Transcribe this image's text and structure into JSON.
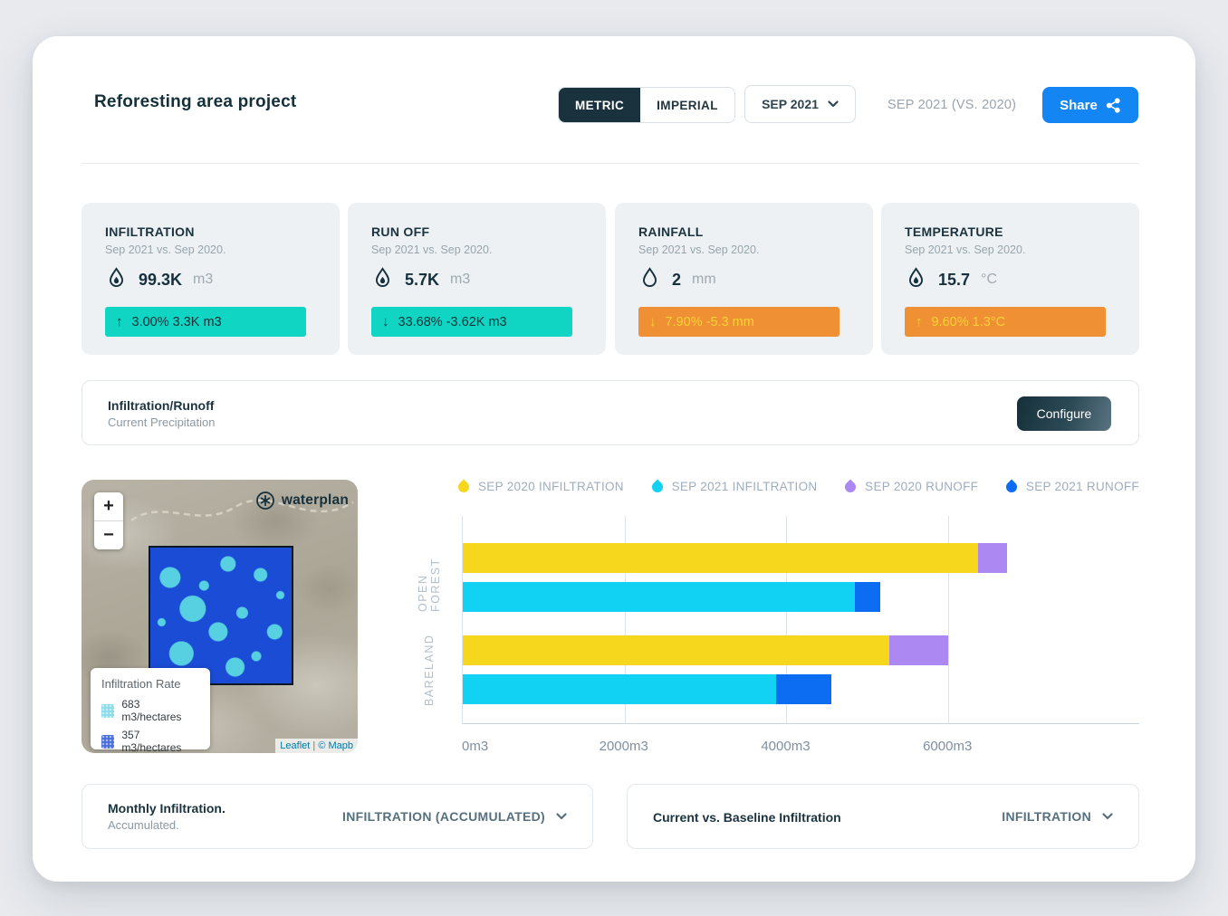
{
  "page": {
    "title": "Reforesting area project"
  },
  "header": {
    "unit_toggle": {
      "metric": "METRIC",
      "imperial": "IMPERIAL"
    },
    "period_select": "SEP 2021",
    "comparison_label": "SEP 2021 (VS. 2020)",
    "share_label": "Share"
  },
  "stat_cards": [
    {
      "title": "INFILTRATION",
      "subtitle": "Sep 2021 vs. Sep 2020.",
      "value": "99.3K",
      "unit": "m3",
      "arrow": "↑",
      "delta": "3.00% 3.3K m3",
      "style": "teal"
    },
    {
      "title": "RUN OFF",
      "subtitle": "Sep 2021 vs. Sep 2020.",
      "value": "5.7K",
      "unit": "m3",
      "arrow": "↓",
      "delta": "33.68% -3.62K m3",
      "style": "teal"
    },
    {
      "title": "RAINFALL",
      "subtitle": "Sep 2021 vs. Sep 2020.",
      "value": "2",
      "unit": "mm",
      "arrow": "↓",
      "delta": "7.90% -5.3 mm",
      "style": "orange"
    },
    {
      "title": "TEMPERATURE",
      "subtitle": "Sep 2021 vs. Sep 2020.",
      "value": "15.7",
      "unit": "°C",
      "arrow": "↑",
      "delta": "9.60% 1.3°C",
      "style": "orange"
    }
  ],
  "config_bar": {
    "title": "Infiltration/Runoff",
    "subtitle": "Current Precipitation",
    "button_label": "Configure"
  },
  "map": {
    "zoom_in": "+",
    "zoom_out": "−",
    "logo_text": "waterplan",
    "legend_title": "Infiltration Rate",
    "legend_items": [
      {
        "label": "683 m3/hectares",
        "color": "#8edbe9"
      },
      {
        "label": "357 m3/hectares",
        "color": "#4a6fd9"
      }
    ],
    "attribution": {
      "link1": "Leaflet",
      "sep": " | ",
      "link2": "© Mapb"
    }
  },
  "chart_data": {
    "type": "bar",
    "orientation": "horizontal",
    "title": "Infiltration/Runoff — Current Precipitation",
    "categories": [
      "OPEN FOREST",
      "BARELAND"
    ],
    "legend": [
      {
        "label": "SEP 2020 INFILTRATION",
        "color": "#f6d71e"
      },
      {
        "label": "SEP 2021 INFILTRATION",
        "color": "#12d2f3"
      },
      {
        "label": "SEP 2020 RUNOFF",
        "color": "#ac88f3"
      },
      {
        "label": "SEP 2021 RUNOFF",
        "color": "#0c6cf2"
      }
    ],
    "rows": [
      {
        "category": "OPEN FOREST",
        "series": "SEP 2020",
        "segments": [
          {
            "name": "infiltration",
            "value": 6370,
            "color": "#f6d71e"
          },
          {
            "name": "runoff",
            "value": 350,
            "color": "#ac88f3"
          }
        ]
      },
      {
        "category": "OPEN FOREST",
        "series": "SEP 2021",
        "segments": [
          {
            "name": "infiltration",
            "value": 4850,
            "color": "#12d2f3"
          },
          {
            "name": "runoff",
            "value": 310,
            "color": "#0c6cf2"
          }
        ]
      },
      {
        "category": "BARELAND",
        "series": "SEP 2020",
        "segments": [
          {
            "name": "infiltration",
            "value": 5270,
            "color": "#f6d71e"
          },
          {
            "name": "runoff",
            "value": 730,
            "color": "#ac88f3"
          }
        ]
      },
      {
        "category": "BARELAND",
        "series": "SEP 2021",
        "segments": [
          {
            "name": "infiltration",
            "value": 3870,
            "color": "#12d2f3"
          },
          {
            "name": "runoff",
            "value": 680,
            "color": "#0c6cf2"
          }
        ]
      }
    ],
    "x_ticks": [
      "0m3",
      "2000m3",
      "4000m3",
      "6000m3"
    ],
    "x_tick_values": [
      0,
      2000,
      4000,
      6000
    ],
    "x_max": 8370,
    "xlabel": "",
    "ylabel": "",
    "grid": true,
    "legend_position": "top"
  },
  "bottom_cards": [
    {
      "title": "Monthly Infiltration.",
      "subtitle": "Accumulated.",
      "selector": "INFILTRATION (ACCUMULATED)"
    },
    {
      "title": "Current vs. Baseline Infiltration",
      "subtitle": "",
      "selector": "INFILTRATION"
    }
  ],
  "colors": {
    "accent_blue": "#1486f4",
    "teal_badge": "#0fd5c2",
    "orange_badge": "#f09035",
    "orange_badge_text": "#f7d234",
    "dark_navy": "#16313d",
    "infiltration_square_base": "#1b4cd6",
    "infiltration_square_patch": "#57d0e2"
  }
}
